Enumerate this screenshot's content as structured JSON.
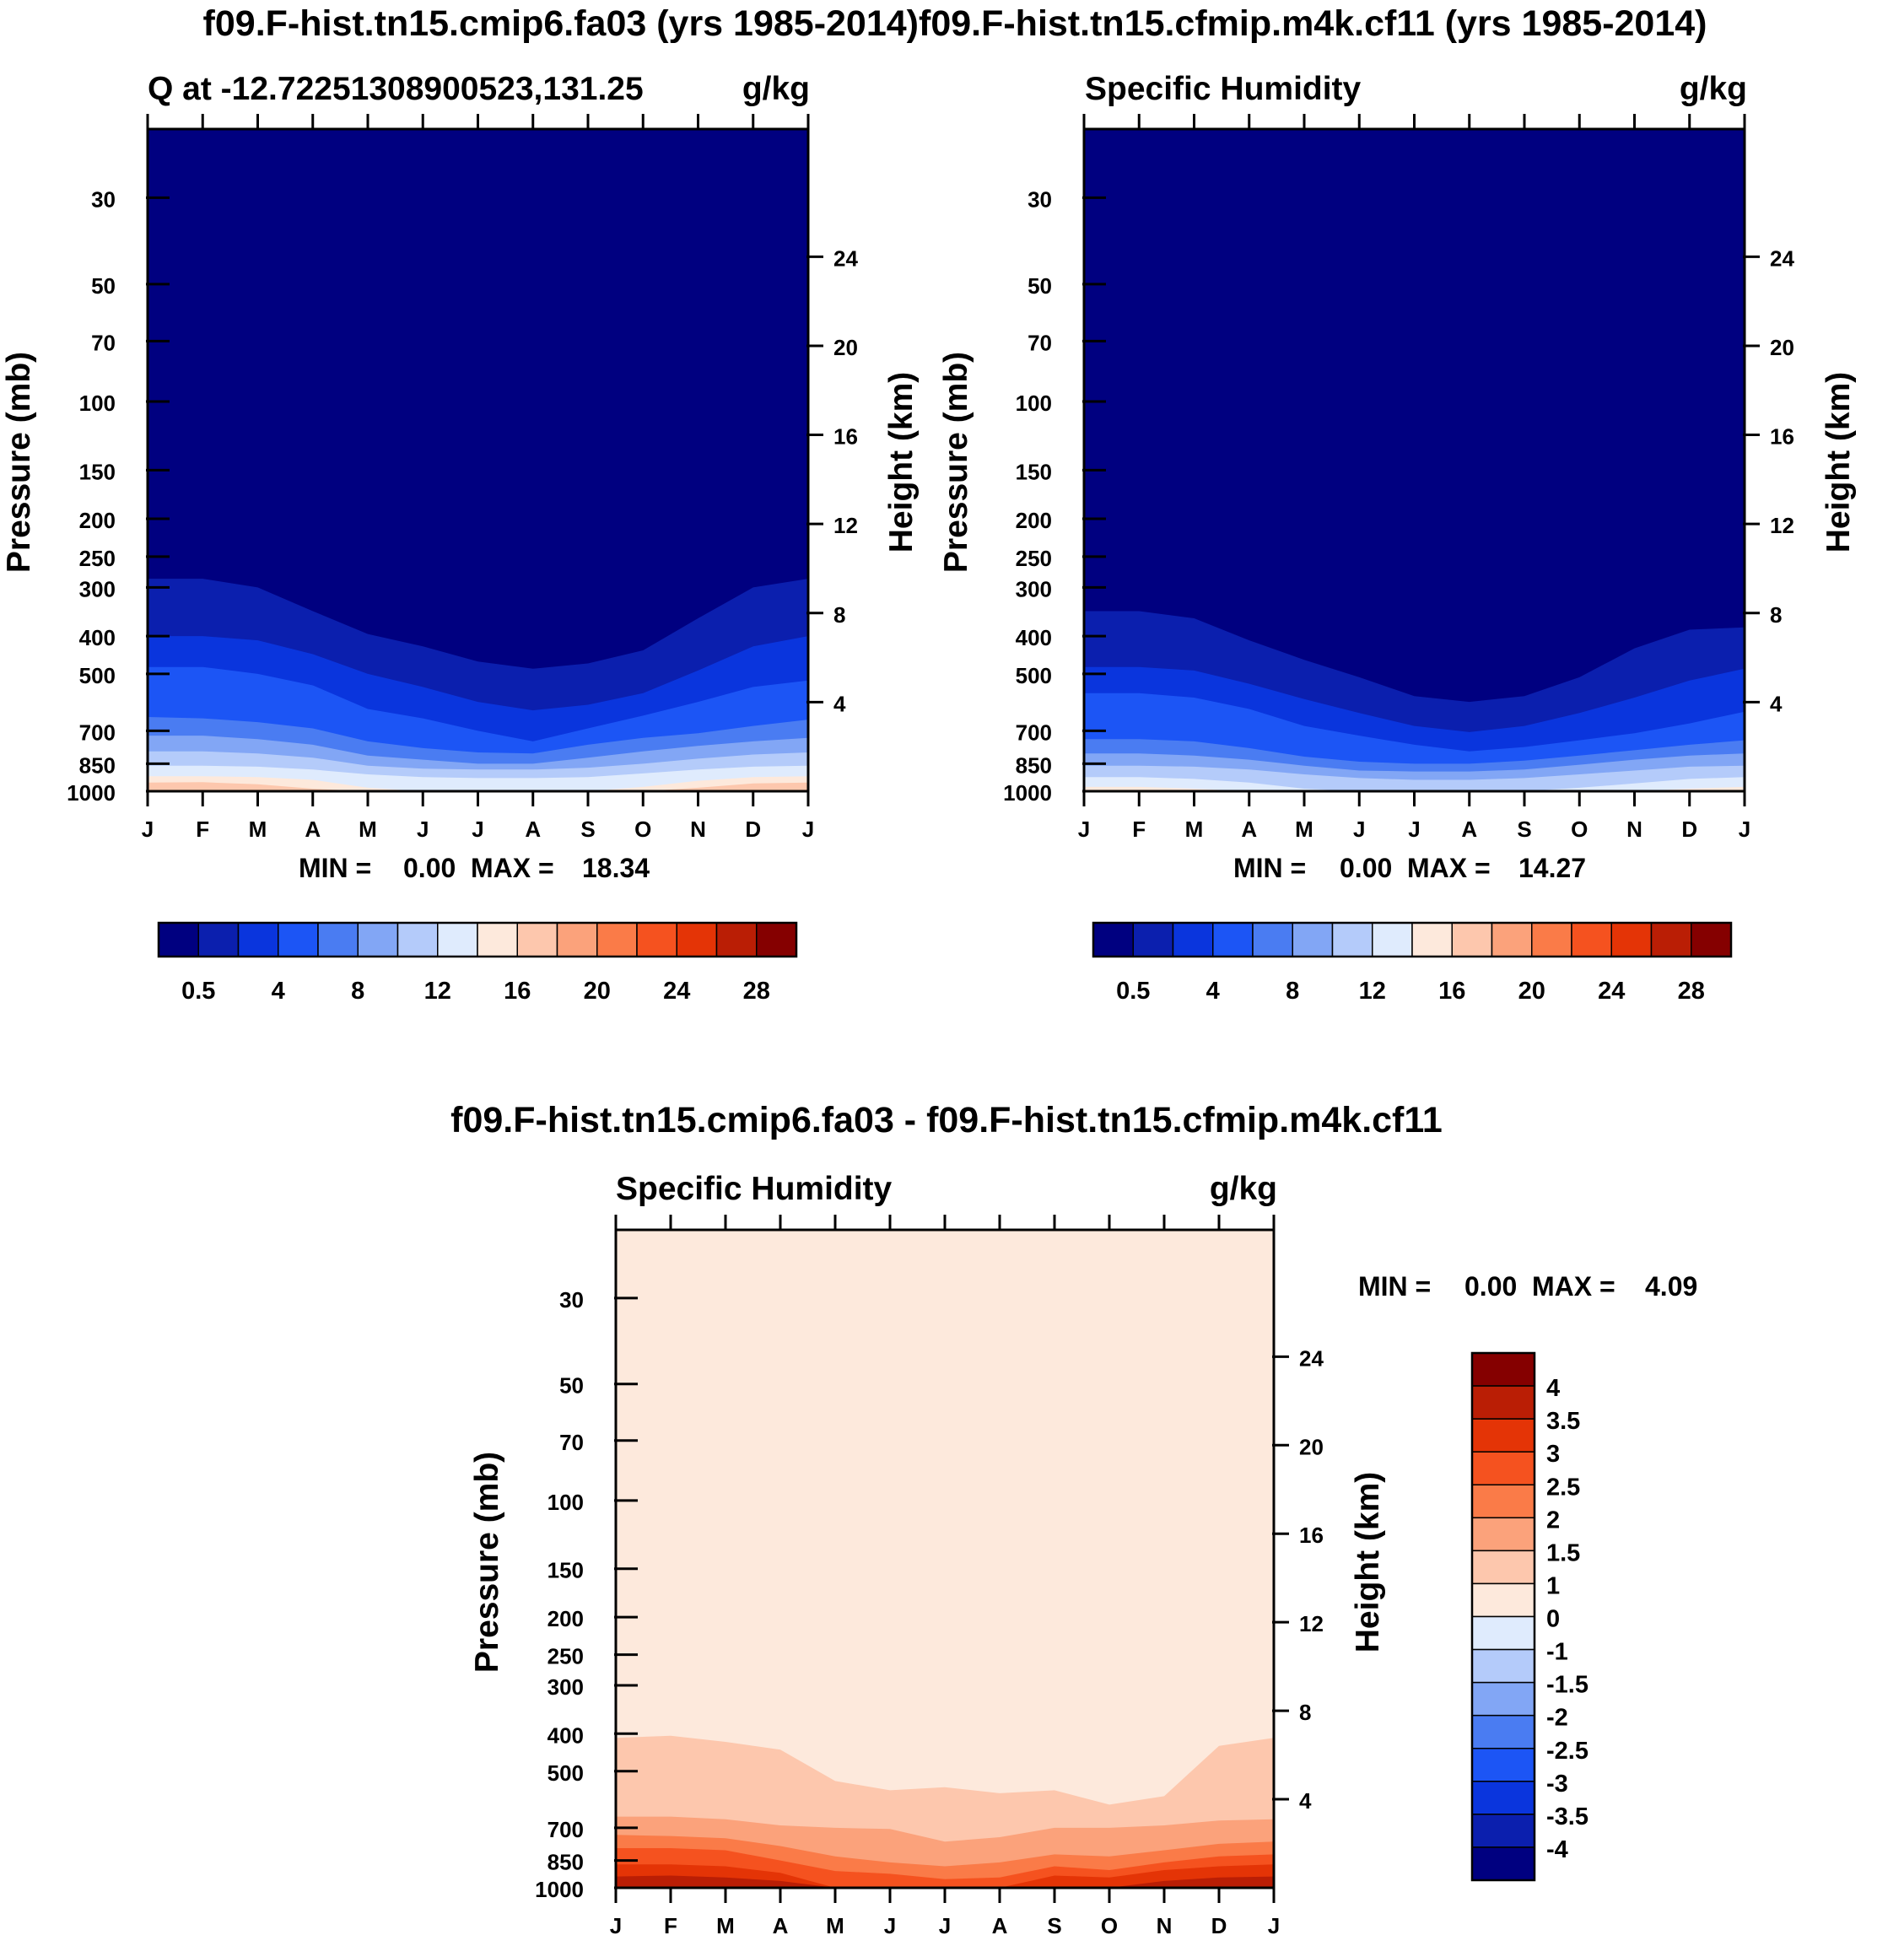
{
  "colors": {
    "seq": [
      "#000080",
      "#0b1fae",
      "#0a35dd",
      "#1c55f5",
      "#4a7cf2",
      "#82a6f5",
      "#b4cbfa",
      "#dfebfd",
      "#fde9dc",
      "#fdc7ad",
      "#fba27b",
      "#fa7b48",
      "#f5521f",
      "#e43406",
      "#ba1e05",
      "#850000"
    ],
    "div": [
      "#000080",
      "#0b1fae",
      "#0a35dd",
      "#1c55f5",
      "#4a7cf2",
      "#82a6f5",
      "#b4cbfa",
      "#dfebfd",
      "#fde9dc",
      "#fdc7ad",
      "#fba27b",
      "#fa7b48",
      "#f5521f",
      "#e43406",
      "#ba1e05",
      "#850000"
    ]
  },
  "header": {
    "left_title": "f09.F-hist.tn15.cmip6.fa03 (yrs 1985-2014)",
    "right_title": "f09.F-hist.tn15.cfmip.m4k.cf11 (yrs 1985-2014)",
    "diff_title": "f09.F-hist.tn15.cmip6.fa03 - f09.F-hist.tn15.cfmip.m4k.cf11"
  },
  "axes": {
    "pressure_ticks": [
      "30",
      "50",
      "70",
      "100",
      "150",
      "200",
      "250",
      "300",
      "400",
      "500",
      "700",
      "850",
      "1000"
    ],
    "height_ticks": [
      "24",
      "20",
      "16",
      "12",
      "8",
      "4"
    ],
    "months": [
      "J",
      "F",
      "M",
      "A",
      "M",
      "J",
      "J",
      "A",
      "S",
      "O",
      "N",
      "D",
      "J"
    ],
    "left_label": "Pressure (mb)",
    "right_label": "Height (km)"
  },
  "panels": {
    "left": {
      "subtitle": "Q at -12.72251308900523,131.25",
      "units": "g/kg",
      "stats_min_label": "MIN =",
      "stats_min": "0.00",
      "stats_max_label": "MAX =",
      "stats_max": "18.34"
    },
    "right": {
      "subtitle": "Specific Humidity",
      "units": "g/kg",
      "stats_min_label": "MIN =",
      "stats_min": "0.00",
      "stats_max_label": "MAX =",
      "stats_max": "14.27"
    },
    "diff": {
      "subtitle": "Specific Humidity",
      "units": "g/kg",
      "stats_min_label": "MIN =",
      "stats_min": "0.00",
      "stats_max_label": "MAX =",
      "stats_max": "4.09"
    }
  },
  "colorbars": {
    "seq_labels": [
      "0.5",
      "4",
      "8",
      "12",
      "16",
      "20",
      "24",
      "28"
    ],
    "div_labels": [
      "4",
      "3.5",
      "3",
      "2.5",
      "2",
      "1.5",
      "1",
      "0",
      "-1",
      "-1.5",
      "-2",
      "-2.5",
      "-3",
      "-3.5",
      "-4"
    ]
  },
  "chart_data": [
    {
      "type": "heatmap",
      "title": "Q at -12.72251308900523,131.25",
      "units": "g/kg",
      "xlabel": "",
      "ylabel": "Pressure (mb)",
      "y2label": "Height (km)",
      "x": [
        "J",
        "F",
        "M",
        "A",
        "M",
        "J",
        "J",
        "A",
        "S",
        "O",
        "N",
        "D",
        "J"
      ],
      "ylim_pressure": [
        1000,
        20
      ],
      "levels": [
        0.5,
        4,
        8,
        12,
        16,
        20,
        24,
        28
      ],
      "fill_levels": [
        1,
        2,
        3,
        4,
        5,
        6,
        7,
        8,
        9
      ],
      "contour_pressures": [
        [
          285,
          285,
          300,
          345,
          395,
          425,
          465,
          485,
          470,
          435,
          360,
          300,
          285
        ],
        [
          400,
          400,
          410,
          445,
          500,
          540,
          590,
          620,
          600,
          560,
          490,
          425,
          400
        ],
        [
          480,
          480,
          500,
          535,
          615,
          650,
          700,
          745,
          690,
          640,
          590,
          540,
          520
        ],
        [
          645,
          650,
          665,
          690,
          745,
          775,
          795,
          800,
          760,
          730,
          710,
          680,
          655
        ],
        [
          720,
          720,
          735,
          760,
          810,
          830,
          850,
          850,
          820,
          790,
          765,
          745,
          730
        ],
        [
          790,
          790,
          800,
          820,
          860,
          875,
          880,
          880,
          870,
          850,
          825,
          805,
          795
        ],
        [
          860,
          860,
          865,
          880,
          905,
          920,
          925,
          925,
          920,
          900,
          880,
          865,
          860
        ],
        [
          915,
          915,
          920,
          935,
          980,
          1000,
          1000,
          1000,
          1000,
          975,
          940,
          920,
          915
        ],
        [
          950,
          948,
          960,
          985,
          1000,
          1000,
          1000,
          1000,
          1000,
          1000,
          980,
          955,
          950
        ]
      ],
      "min": 0.0,
      "max": 18.34
    },
    {
      "type": "heatmap",
      "title": "Specific Humidity",
      "units": "g/kg",
      "xlabel": "",
      "ylabel": "Pressure (mb)",
      "y2label": "Height (km)",
      "x": [
        "J",
        "F",
        "M",
        "A",
        "M",
        "J",
        "J",
        "A",
        "S",
        "O",
        "N",
        "D",
        "J"
      ],
      "ylim_pressure": [
        1000,
        20
      ],
      "levels": [
        0.5,
        4,
        8,
        12,
        16,
        20,
        24,
        28
      ],
      "fill_levels": [
        1,
        2,
        3,
        4,
        5,
        6,
        7,
        8
      ],
      "contour_pressures": [
        [
          345,
          345,
          360,
          410,
          460,
          510,
          570,
          590,
          570,
          510,
          430,
          385,
          380
        ],
        [
          480,
          480,
          490,
          530,
          580,
          630,
          680,
          705,
          680,
          630,
          575,
          520,
          485
        ],
        [
          560,
          560,
          575,
          615,
          680,
          720,
          760,
          790,
          770,
          740,
          710,
          670,
          625
        ],
        [
          735,
          735,
          745,
          775,
          815,
          840,
          850,
          850,
          835,
          810,
          785,
          760,
          740
        ],
        [
          800,
          800,
          810,
          830,
          860,
          885,
          890,
          890,
          880,
          855,
          830,
          810,
          800
        ],
        [
          860,
          860,
          865,
          880,
          905,
          925,
          935,
          935,
          925,
          905,
          885,
          865,
          860
        ],
        [
          920,
          920,
          930,
          950,
          985,
          1000,
          1000,
          1000,
          1000,
          980,
          955,
          930,
          920
        ],
        [
          975,
          975,
          985,
          1000,
          1000,
          1000,
          1000,
          1000,
          1000,
          1000,
          1000,
          985,
          975
        ]
      ],
      "min": 0.0,
      "max": 14.27
    },
    {
      "type": "heatmap",
      "title": "Specific Humidity",
      "units": "g/kg",
      "xlabel": "",
      "ylabel": "Pressure (mb)",
      "y2label": "Height (km)",
      "x": [
        "J",
        "F",
        "M",
        "A",
        "M",
        "J",
        "J",
        "A",
        "S",
        "O",
        "N",
        "D",
        "J"
      ],
      "ylim_pressure": [
        1000,
        20
      ],
      "levels": [
        -4,
        -3.5,
        -3,
        -2.5,
        -2,
        -1.5,
        -1,
        0,
        1,
        1.5,
        2,
        2.5,
        3,
        3.5,
        4
      ],
      "base_level": 8,
      "fill_levels": [
        9,
        10,
        11,
        12,
        13,
        14
      ],
      "contour_pressures": [
        [
          410,
          405,
          420,
          440,
          530,
          560,
          550,
          570,
          560,
          610,
          580,
          430,
          410
        ],
        [
          655,
          655,
          665,
          690,
          700,
          705,
          760,
          740,
          700,
          700,
          690,
          670,
          665
        ],
        [
          730,
          735,
          745,
          780,
          830,
          860,
          880,
          860,
          820,
          830,
          800,
          770,
          760
        ],
        [
          790,
          790,
          800,
          850,
          905,
          920,
          950,
          940,
          880,
          900,
          860,
          830,
          820
        ],
        [
          870,
          870,
          880,
          915,
          1000,
          1000,
          1000,
          1000,
          930,
          940,
          900,
          880,
          870
        ],
        [
          935,
          930,
          940,
          960,
          1000,
          1000,
          1000,
          1000,
          1000,
          1000,
          960,
          940,
          935
        ]
      ],
      "min": 0.0,
      "max": 4.09
    }
  ]
}
